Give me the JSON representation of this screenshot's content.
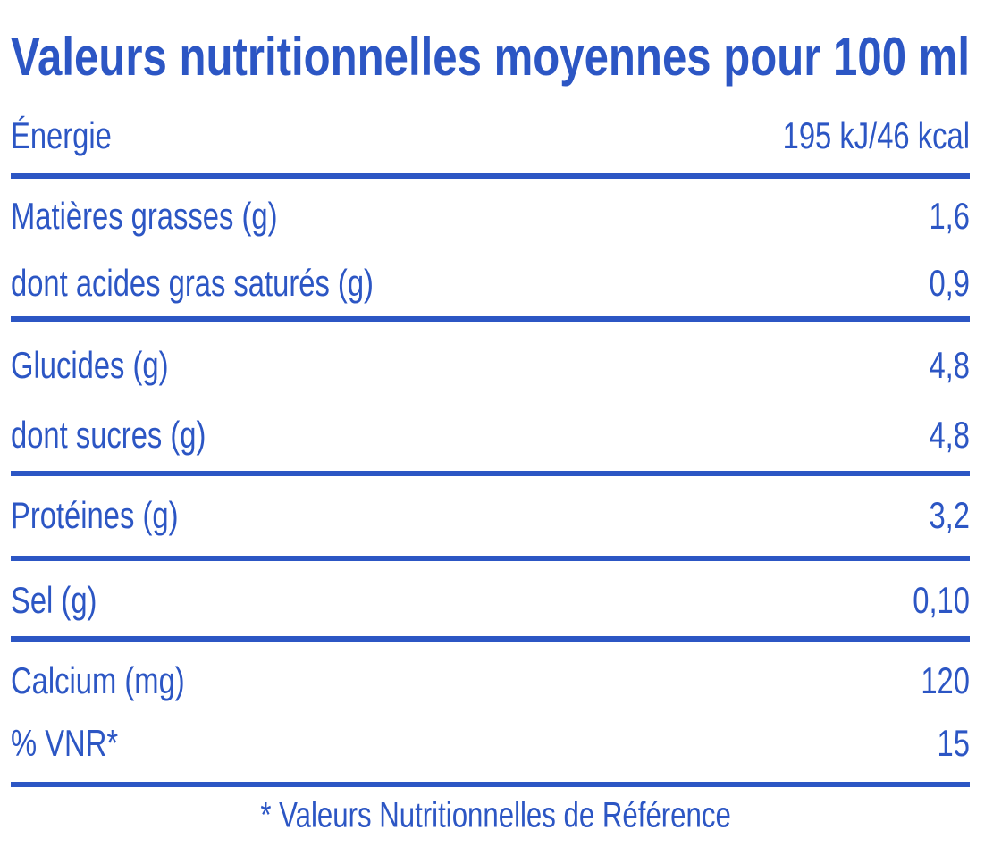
{
  "title": "Valeurs nutritionnelles moyennes pour 100 ml",
  "groups": [
    {
      "rows": [
        {
          "label": "Énergie",
          "value": "195 kJ/46 kcal"
        }
      ]
    },
    {
      "rows": [
        {
          "label": "Matières grasses (g)",
          "value": "1,6"
        },
        {
          "label": "dont acides gras saturés (g)",
          "value": "0,9"
        }
      ]
    },
    {
      "rows": [
        {
          "label": "Glucides (g)",
          "value": "4,8"
        },
        {
          "label": "dont sucres (g)",
          "value": "4,8"
        }
      ]
    },
    {
      "rows": [
        {
          "label": "Protéines (g)",
          "value": "3,2"
        }
      ]
    },
    {
      "rows": [
        {
          "label": "Sel (g)",
          "value": "0,10"
        }
      ]
    },
    {
      "rows": [
        {
          "label": "Calcium (mg)",
          "value": "120"
        },
        {
          "label": "% VNR*",
          "value": "15"
        }
      ]
    }
  ],
  "footnote": "* Valeurs Nutritionnelles de Référence"
}
